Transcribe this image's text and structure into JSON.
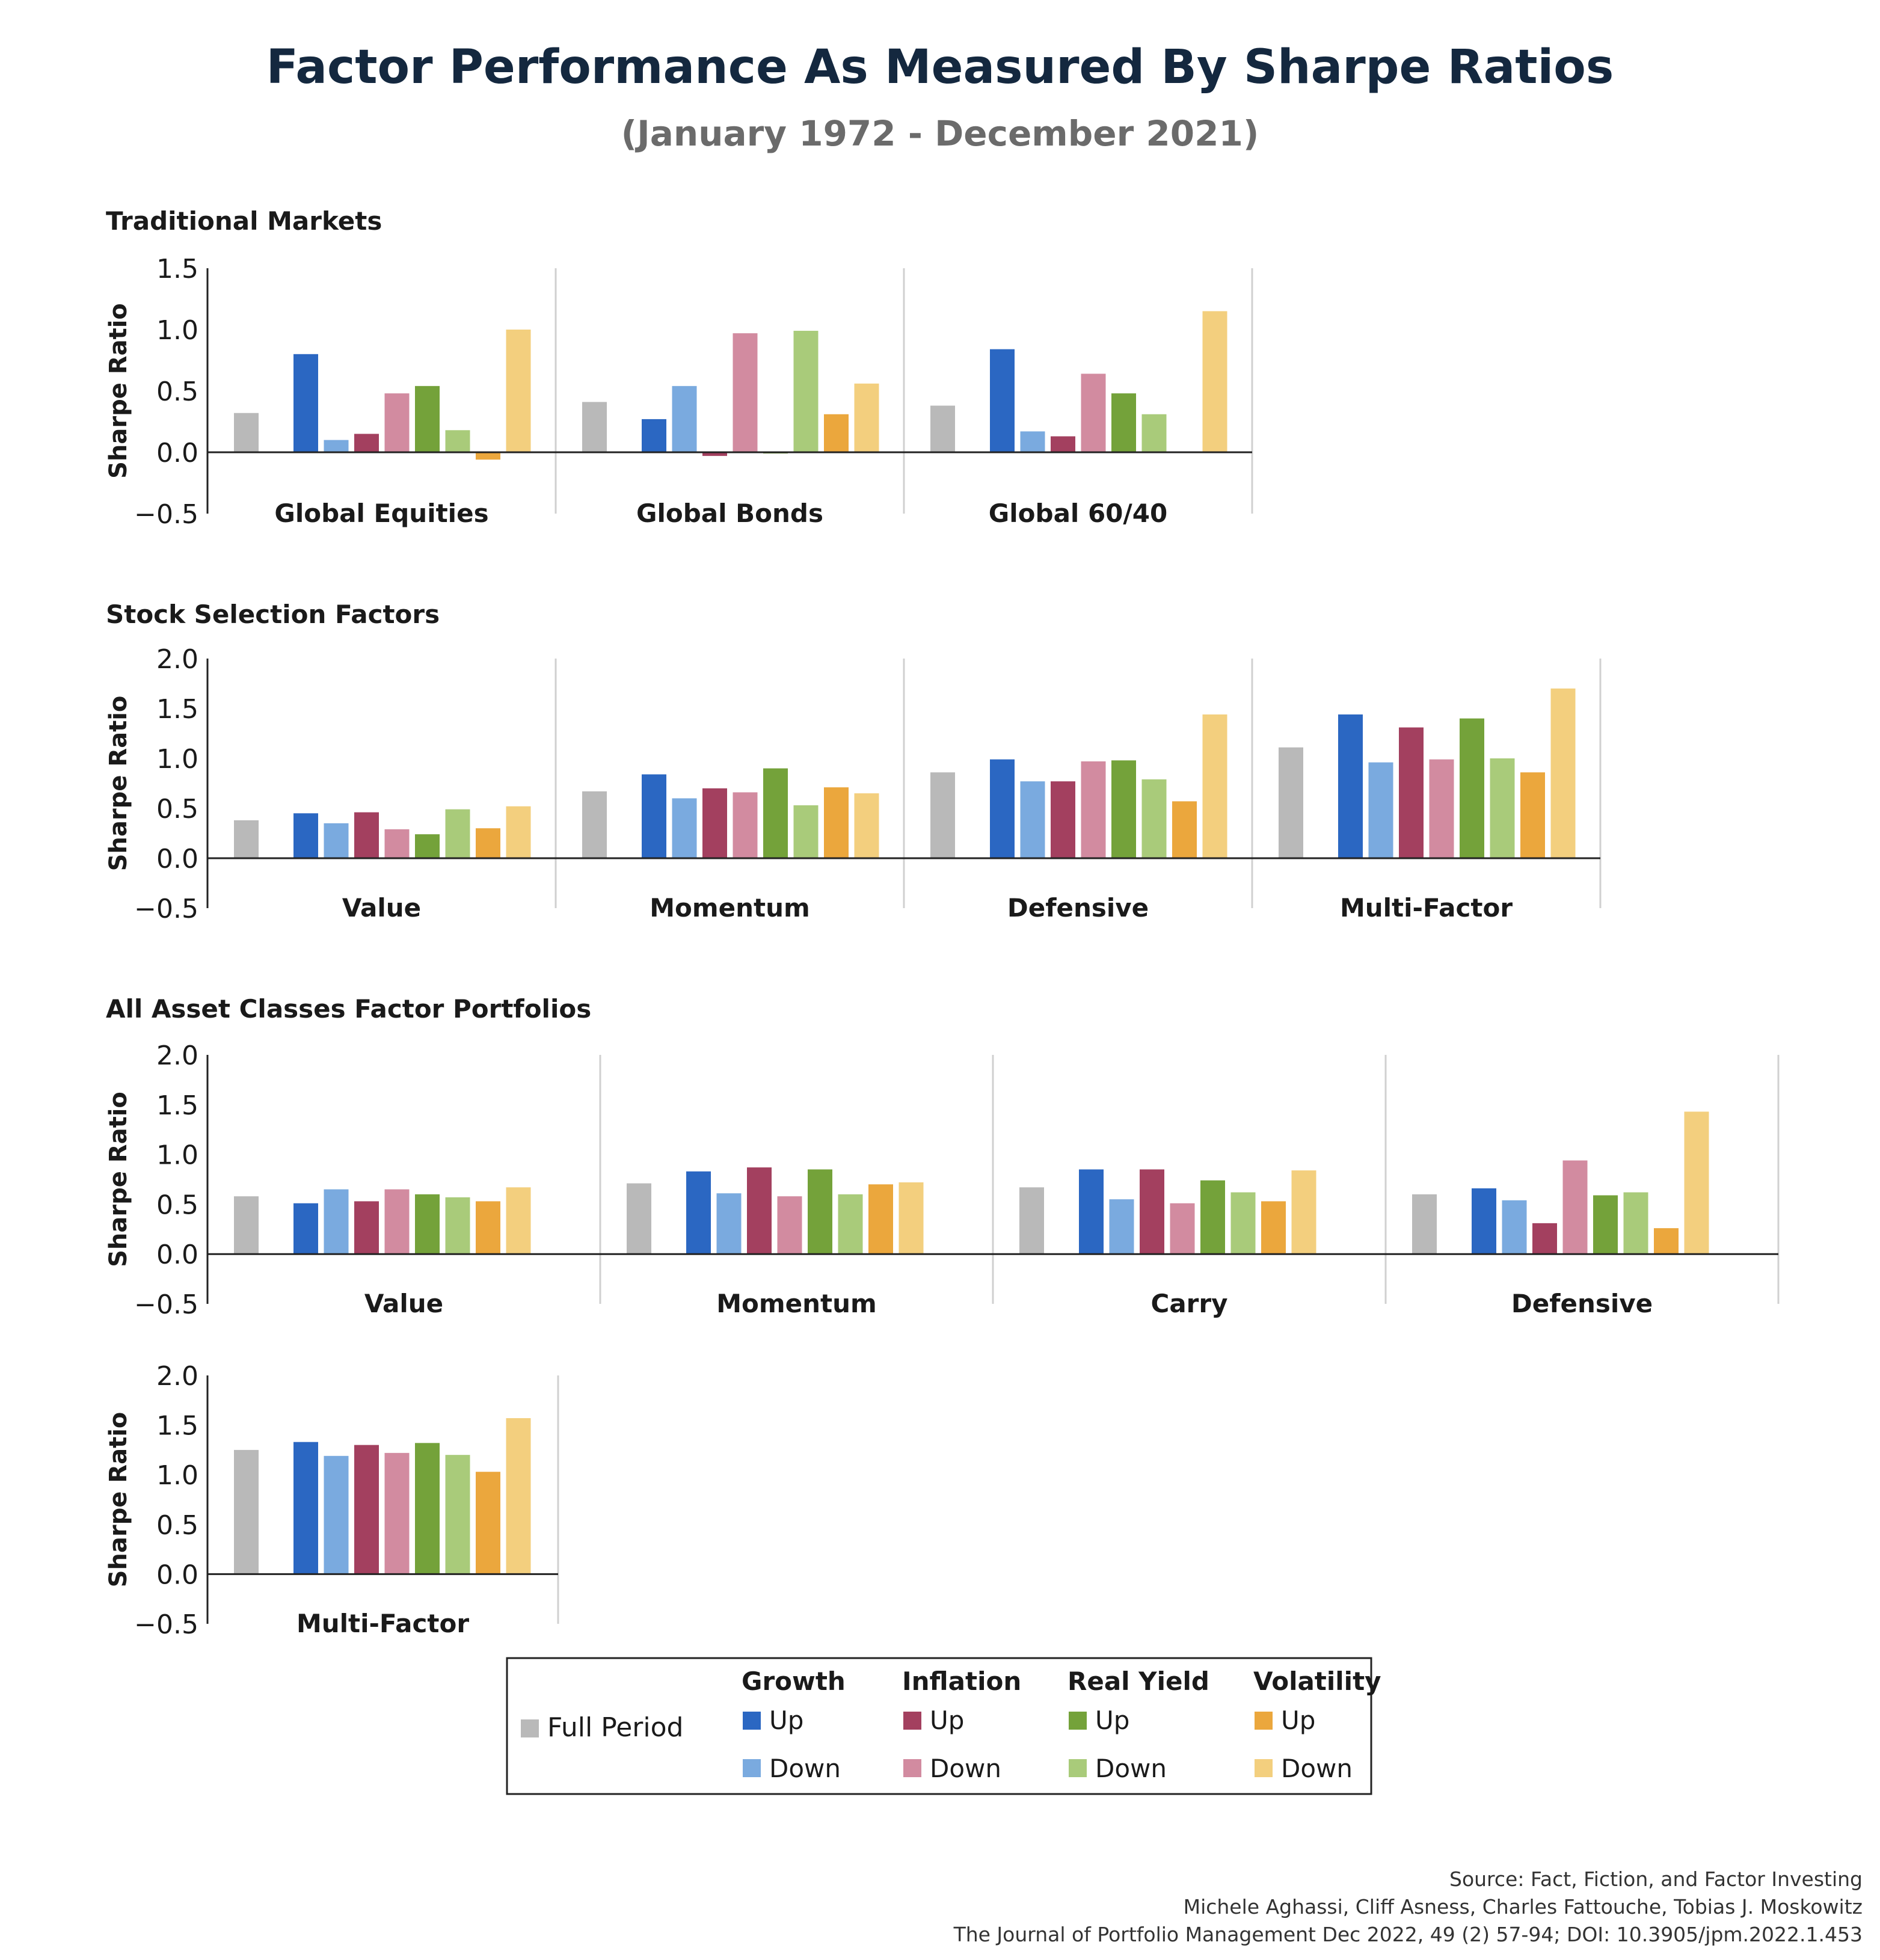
{
  "title": "Factor Performance As Measured By Sharpe Ratios",
  "subtitle": "(January 1972 - December 2021)",
  "colors": {
    "full": "#b9b9b9",
    "growth_up": "#2b67c2",
    "growth_down": "#7aaadf",
    "inflation_up": "#a3405f",
    "inflation_down": "#d28ba0",
    "realyield_up": "#74a23a",
    "realyield_down": "#a9cb7a",
    "vol_up": "#eba73d",
    "vol_down": "#f3cf7e",
    "title": "#14283f",
    "subtitle": "#6b6b6b",
    "divider": "#d0d0d0"
  },
  "series_keys": [
    "full",
    "growth_up",
    "growth_down",
    "inflation_up",
    "inflation_down",
    "realyield_up",
    "realyield_down",
    "vol_up",
    "vol_down"
  ],
  "chart_data": [
    {
      "type": "bar",
      "section_title": "Traditional Markets",
      "ylabel": "Sharpe Ratio",
      "ylim": [
        -0.5,
        1.5
      ],
      "yticks": [
        "1.5",
        "1.0",
        "0.5",
        "0.0",
        "−0.5"
      ],
      "categories": [
        "Global Equities",
        "Global Bonds",
        "Global 60/40"
      ],
      "values": [
        [
          0.32,
          0.8,
          0.1,
          0.15,
          0.48,
          0.54,
          0.18,
          -0.06,
          1.0
        ],
        [
          0.41,
          0.27,
          0.54,
          -0.03,
          0.97,
          -0.01,
          0.99,
          0.31,
          0.56
        ],
        [
          0.38,
          0.84,
          0.17,
          0.13,
          0.64,
          0.48,
          0.31,
          0.0,
          1.15
        ]
      ]
    },
    {
      "type": "bar",
      "section_title": "Stock Selection Factors",
      "ylabel": "Sharpe Ratio",
      "ylim": [
        -0.5,
        2.0
      ],
      "yticks": [
        "2.0",
        "1.5",
        "1.0",
        "0.5",
        "0.0",
        "−0.5"
      ],
      "categories": [
        "Value",
        "Momentum",
        "Defensive",
        "Multi-Factor"
      ],
      "values": [
        [
          0.38,
          0.45,
          0.35,
          0.46,
          0.29,
          0.24,
          0.49,
          0.3,
          0.52
        ],
        [
          0.67,
          0.84,
          0.6,
          0.7,
          0.66,
          0.9,
          0.53,
          0.71,
          0.65
        ],
        [
          0.86,
          0.99,
          0.77,
          0.77,
          0.97,
          0.98,
          0.79,
          0.57,
          1.44
        ],
        [
          1.11,
          1.44,
          0.96,
          1.31,
          0.99,
          1.4,
          1.0,
          0.86,
          1.7
        ]
      ]
    },
    {
      "type": "bar",
      "section_title": "All Asset Classes Factor Portfolios",
      "ylabel": "Sharpe Ratio",
      "ylim": [
        -0.5,
        2.0
      ],
      "yticks": [
        "2.0",
        "1.5",
        "1.0",
        "0.5",
        "0.0",
        "−0.5"
      ],
      "categories": [
        "Value",
        "Momentum",
        "Carry",
        "Defensive"
      ],
      "values": [
        [
          0.58,
          0.51,
          0.65,
          0.53,
          0.65,
          0.6,
          0.57,
          0.53,
          0.67
        ],
        [
          0.71,
          0.83,
          0.61,
          0.87,
          0.58,
          0.85,
          0.6,
          0.7,
          0.72
        ],
        [
          0.67,
          0.85,
          0.55,
          0.85,
          0.51,
          0.74,
          0.62,
          0.53,
          0.84
        ],
        [
          0.6,
          0.66,
          0.54,
          0.31,
          0.94,
          0.59,
          0.62,
          0.26,
          1.43
        ]
      ]
    },
    {
      "type": "bar",
      "section_title": "",
      "ylabel": "Sharpe Ratio",
      "ylim": [
        -0.5,
        2.0
      ],
      "yticks": [
        "2.0",
        "1.5",
        "1.0",
        "0.5",
        "0.0",
        "−0.5"
      ],
      "categories": [
        "Multi-Factor"
      ],
      "values": [
        [
          1.25,
          1.33,
          1.19,
          1.3,
          1.22,
          1.32,
          1.2,
          1.03,
          1.57
        ]
      ]
    }
  ],
  "legend": {
    "full_period": "Full Period",
    "groups": [
      {
        "heading": "Growth",
        "up": "Up",
        "down": "Down"
      },
      {
        "heading": "Inflation",
        "up": "Up",
        "down": "Down"
      },
      {
        "heading": "Real Yield",
        "up": "Up",
        "down": "Down"
      },
      {
        "heading": "Volatility",
        "up": "Up",
        "down": "Down"
      }
    ]
  },
  "source": {
    "line1": "Source: Fact, Fiction, and Factor Investing",
    "line2": "Michele Aghassi, Cliff Asness, Charles Fattouche, Tobias J. Moskowitz",
    "line3": "The Journal of Portfolio Management Dec 2022, 49 (2) 57-94; DOI: 10.3905/jpm.2022.1.453"
  }
}
